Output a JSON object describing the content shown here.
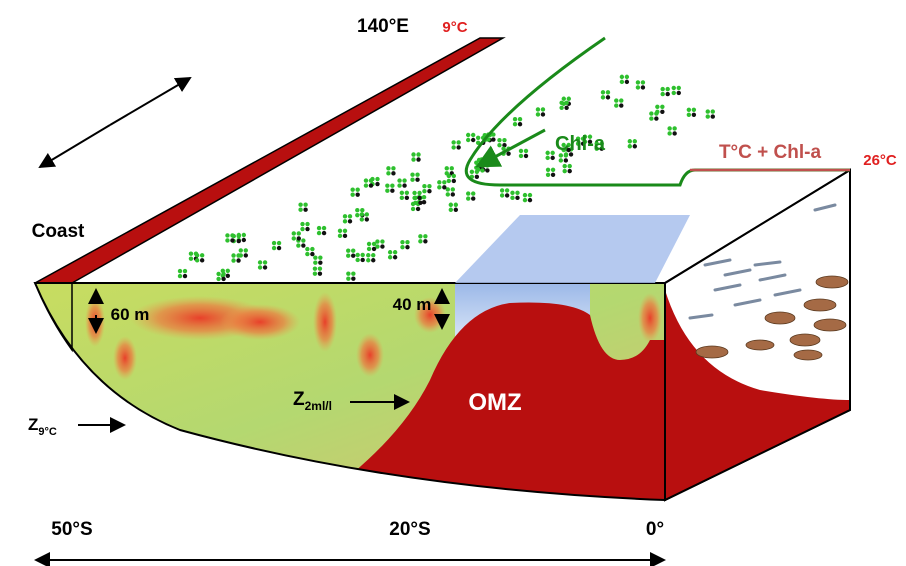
{
  "labels": {
    "longitude": "140°E",
    "coast_temp": "9°C",
    "chl": "Chl-a",
    "temp_chl": "T°C + Chl-a",
    "offshore_temp": "26°C",
    "coast": "Coast",
    "depth_coast": "60 m",
    "depth_shelf": "40 m",
    "omz": "OMZ"
  },
  "z_oxygen": {
    "main": "Z",
    "sub": "2ml/l"
  },
  "z_temp": {
    "main": "Z",
    "sub": "9°C"
  },
  "latitudes": [
    "50°S",
    "20°S",
    "0°"
  ]
}
